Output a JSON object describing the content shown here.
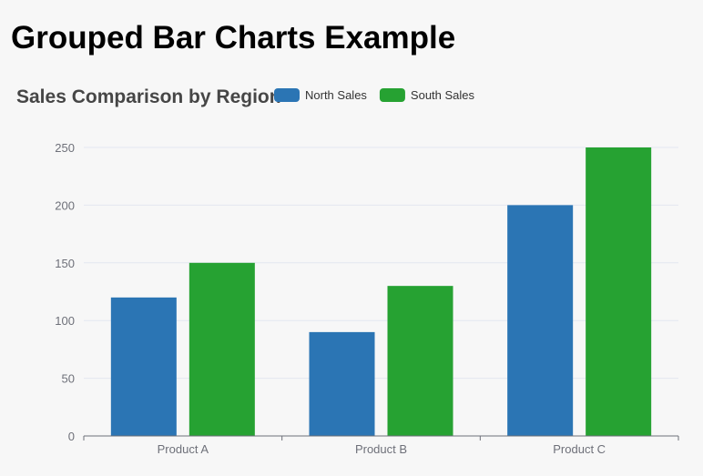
{
  "page": {
    "heading": "Grouped Bar Charts Example"
  },
  "chart_data": {
    "type": "bar",
    "title": "Sales Comparison by Region",
    "categories": [
      "Product A",
      "Product B",
      "Product C"
    ],
    "series": [
      {
        "name": "North Sales",
        "values": [
          120,
          90,
          200
        ],
        "color": "#2b75b4"
      },
      {
        "name": "South Sales",
        "values": [
          150,
          130,
          250
        ],
        "color": "#26a232"
      }
    ],
    "yticks": [
      0,
      50,
      100,
      150,
      200,
      250
    ],
    "ylim": [
      0,
      250
    ],
    "grid": true,
    "legend": "top"
  }
}
